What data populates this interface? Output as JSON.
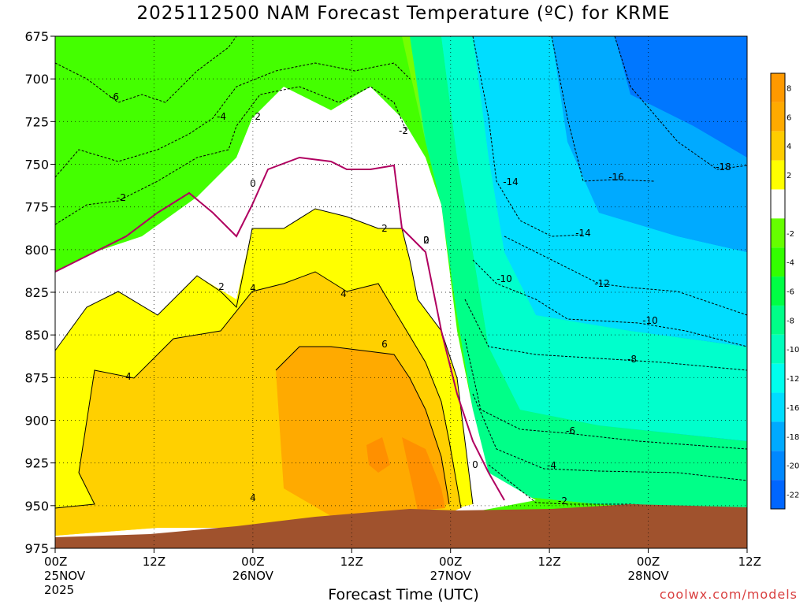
{
  "chart_data": {
    "type": "heatmap",
    "title": "2025112500 NAM Forecast Temperature (ºC) for KRME",
    "xlabel": "Forecast Time (UTC)",
    "ylabel": "",
    "credit": "coolwx.com/models",
    "y_ticks": [
      "675",
      "700",
      "725",
      "750",
      "775",
      "800",
      "825",
      "850",
      "875",
      "900",
      "925",
      "950",
      "975"
    ],
    "x_ticks": [
      {
        "time": "00Z",
        "date": "25NOV",
        "year": "2025"
      },
      {
        "time": "12Z",
        "date": "",
        "year": ""
      },
      {
        "time": "00Z",
        "date": "26NOV",
        "year": ""
      },
      {
        "time": "12Z",
        "date": "",
        "year": ""
      },
      {
        "time": "00Z",
        "date": "27NOV",
        "year": ""
      },
      {
        "time": "12Z",
        "date": "",
        "year": ""
      },
      {
        "time": "00Z",
        "date": "28NOV",
        "year": ""
      },
      {
        "time": "12Z",
        "date": "",
        "year": ""
      }
    ],
    "colorbar": [
      {
        "label": "8",
        "color": "#ff9900"
      },
      {
        "label": "6",
        "color": "#ffaa00"
      },
      {
        "label": "4",
        "color": "#ffcc00"
      },
      {
        "label": "2",
        "color": "#ffff00"
      },
      {
        "label": "",
        "color": "#ffffff"
      },
      {
        "label": "-2",
        "color": "#66ff00"
      },
      {
        "label": "-4",
        "color": "#33ff00"
      },
      {
        "label": "-6",
        "color": "#00ff44"
      },
      {
        "label": "-8",
        "color": "#00ff88"
      },
      {
        "label": "-10",
        "color": "#00ffbb"
      },
      {
        "label": "-12",
        "color": "#00ffee"
      },
      {
        "label": "-16",
        "color": "#00ddff"
      },
      {
        "label": "-18",
        "color": "#00aaff"
      },
      {
        "label": "-20",
        "color": "#0088ff"
      },
      {
        "label": "-22",
        "color": "#0066ff"
      }
    ],
    "contour_labels": [
      "-6",
      "-4",
      "-2",
      "-2",
      "-2",
      "0",
      "2",
      "2",
      "2",
      "4",
      "4",
      "4",
      "4",
      "6",
      "0",
      "0",
      "-14",
      "-16",
      "-18",
      "-14",
      "-10",
      "-12",
      "-10",
      "-8",
      "-6",
      "-4",
      "-2"
    ],
    "ground_color": "#a0522d",
    "frozen_line_color": "#b00060"
  }
}
